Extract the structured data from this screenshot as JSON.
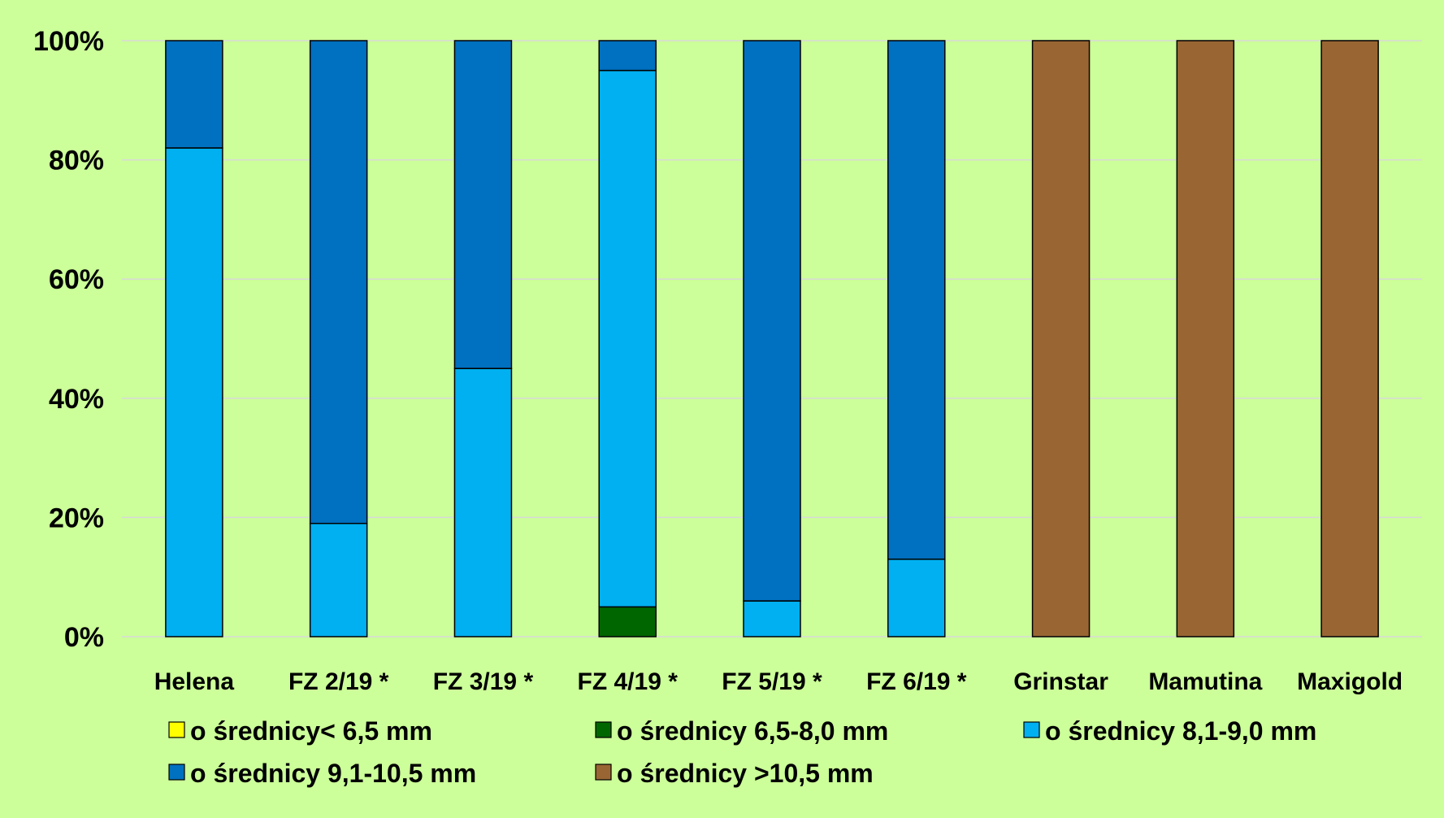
{
  "chart_data": {
    "type": "bar",
    "stacked": true,
    "percent": true,
    "title": "",
    "xlabel": "",
    "ylabel": "",
    "ylim": [
      0,
      100
    ],
    "yticks": [
      "0%",
      "20%",
      "40%",
      "60%",
      "80%",
      "100%"
    ],
    "grid": true,
    "legend_position": "bottom",
    "categories": [
      "Helena",
      "FZ 2/19 *",
      "FZ 3/19 *",
      "FZ 4/19 *",
      "FZ 5/19 *",
      "FZ 6/19 *",
      "Grinstar",
      "Mamutina",
      "Maxigold"
    ],
    "series": [
      {
        "name": "o średnicy< 6,5 mm",
        "color": "#ffff00",
        "values": [
          0,
          0,
          0,
          0,
          0,
          0,
          0,
          0,
          0
        ]
      },
      {
        "name": "o średnicy 6,5-8,0 mm",
        "color": "#006600",
        "values": [
          0,
          0,
          0,
          5,
          0,
          0,
          0,
          0,
          0
        ]
      },
      {
        "name": "o średnicy 8,1-9,0 mm",
        "color": "#00b0f0",
        "values": [
          82,
          19,
          45,
          90,
          6,
          13,
          0,
          0,
          0
        ]
      },
      {
        "name": "o średnicy 9,1-10,5 mm",
        "color": "#0070c0",
        "values": [
          18,
          81,
          55,
          5,
          94,
          87,
          0,
          0,
          0
        ]
      },
      {
        "name": "o średnicy >10,5 mm",
        "color": "#996633",
        "values": [
          0,
          0,
          0,
          0,
          0,
          0,
          100,
          100,
          100
        ]
      }
    ],
    "colors": {
      "panel_background": "#ccff99",
      "gridline": "#d9d9d9",
      "bar_outline": "#000000"
    }
  }
}
